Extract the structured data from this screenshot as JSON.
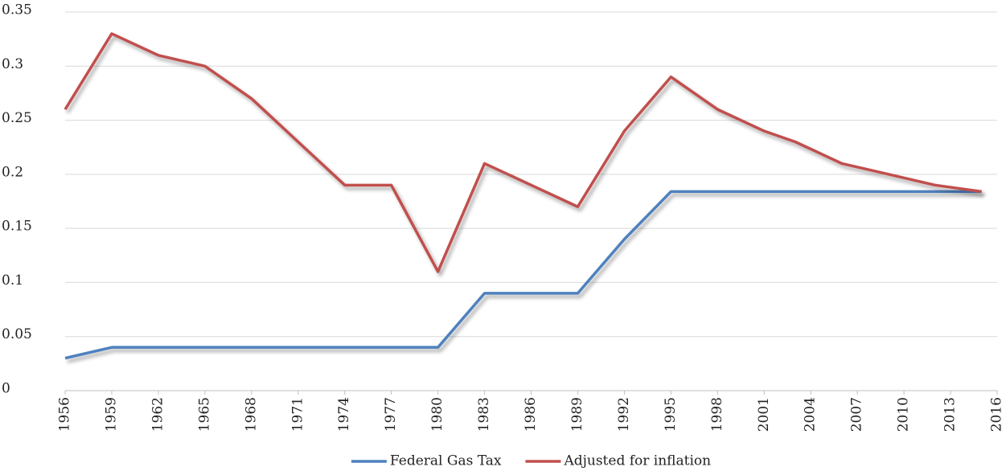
{
  "chart_data": {
    "type": "line",
    "x": [
      1956,
      1959,
      1962,
      1965,
      1968,
      1971,
      1974,
      1977,
      1980,
      1983,
      1986,
      1989,
      1992,
      1995,
      1998,
      2001,
      2003,
      2006,
      2009,
      2012,
      2015
    ],
    "series": [
      {
        "name": "Federal Gas Tax",
        "color": "#4f81bd",
        "values": [
          0.03,
          0.04,
          0.04,
          0.04,
          0.04,
          0.04,
          0.04,
          0.04,
          0.04,
          0.09,
          0.09,
          0.09,
          0.14,
          0.184,
          0.184,
          0.184,
          0.184,
          0.184,
          0.184,
          0.184,
          0.184
        ]
      },
      {
        "name": "Adjusted for inflation",
        "color": "#c0504d",
        "values": [
          0.26,
          0.33,
          0.31,
          0.3,
          0.27,
          0.23,
          0.19,
          0.19,
          0.11,
          0.21,
          0.19,
          0.17,
          0.24,
          0.29,
          0.26,
          0.24,
          0.23,
          0.21,
          0.2,
          0.19,
          0.184
        ]
      }
    ],
    "xlim": [
      1956,
      2016
    ],
    "xticks": [
      1956,
      1959,
      1962,
      1965,
      1968,
      1971,
      1974,
      1977,
      1980,
      1983,
      1986,
      1989,
      1992,
      1995,
      1998,
      2001,
      2004,
      2007,
      2010,
      2013,
      2016
    ],
    "ylim": [
      0,
      0.35
    ],
    "yticks": [
      0,
      0.05,
      0.1,
      0.15,
      0.2,
      0.25,
      0.3,
      0.35
    ],
    "grid": true,
    "legend": "bottom"
  }
}
